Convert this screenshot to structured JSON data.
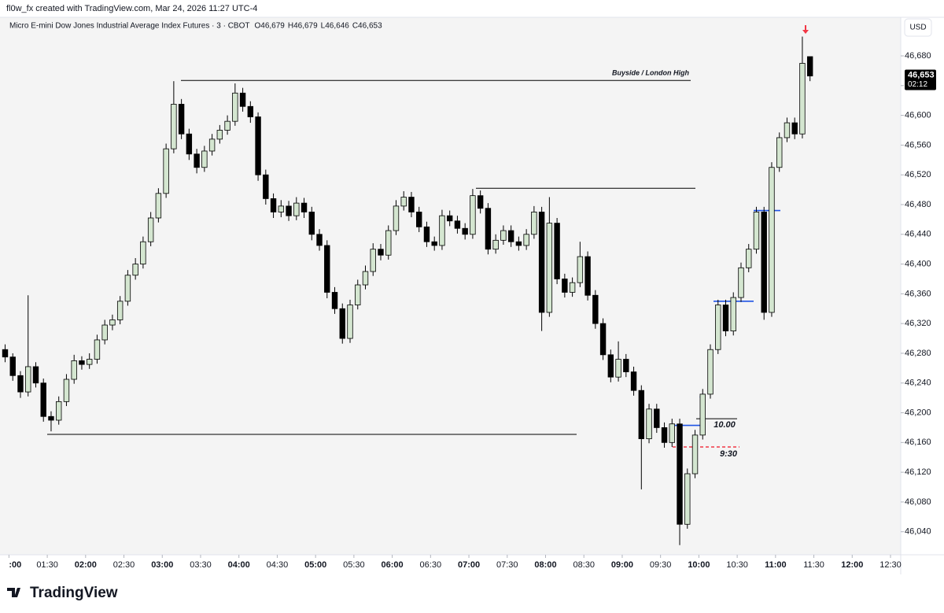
{
  "header": {
    "caption": "fl0w_fx created with TradingView.com, Mar 24, 2026 11:27 UTC-4",
    "currency": "USD",
    "brand": "TradingView"
  },
  "chart_data": {
    "type": "candlestick",
    "title": "Micro E-mini Dow Jones Industrial Average Index Futures · 3 · CBOT",
    "ohlc_text": [
      "O46,679",
      "H46,679",
      "L46,646",
      "C46,653"
    ],
    "x": [
      "00:57",
      "01:03",
      "01:09",
      "01:15",
      "01:21",
      "01:27",
      "01:33",
      "01:39",
      "01:45",
      "01:51",
      "01:57",
      "02:03",
      "02:09",
      "02:15",
      "02:21",
      "02:27",
      "02:33",
      "02:39",
      "02:45",
      "02:51",
      "02:57",
      "03:03",
      "03:09",
      "03:15",
      "03:21",
      "03:27",
      "03:33",
      "03:39",
      "03:45",
      "03:51",
      "03:57",
      "04:03",
      "04:09",
      "04:15",
      "04:21",
      "04:27",
      "04:33",
      "04:39",
      "04:45",
      "04:51",
      "04:57",
      "05:03",
      "05:09",
      "05:15",
      "05:21",
      "05:27",
      "05:33",
      "05:39",
      "05:45",
      "05:51",
      "05:57",
      "06:03",
      "06:09",
      "06:15",
      "06:21",
      "06:27",
      "06:33",
      "06:39",
      "06:45",
      "06:51",
      "06:57",
      "07:03",
      "07:09",
      "07:15",
      "07:21",
      "07:27",
      "07:33",
      "07:39",
      "07:45",
      "07:51",
      "07:57",
      "08:03",
      "08:09",
      "08:15",
      "08:21",
      "08:27",
      "08:33",
      "08:39",
      "08:45",
      "08:51",
      "08:57",
      "09:03",
      "09:09",
      "09:15",
      "09:21",
      "09:27",
      "09:33",
      "09:39",
      "09:45",
      "09:51",
      "09:57",
      "10:03",
      "10:09",
      "10:15",
      "10:21",
      "10:27",
      "10:33",
      "10:39",
      "10:45",
      "10:51",
      "10:57",
      "11:03",
      "11:09",
      "11:15",
      "11:21",
      "11:27"
    ],
    "open": [
      46285,
      46275,
      46250,
      46228,
      46262,
      46240,
      46195,
      46190,
      46215,
      46245,
      46270,
      46265,
      46272,
      46298,
      46318,
      46325,
      46350,
      46385,
      46400,
      46430,
      46462,
      46495,
      46555,
      46615,
      46575,
      46548,
      46530,
      46552,
      46568,
      46580,
      46592,
      46630,
      46612,
      46598,
      46520,
      46488,
      46470,
      46478,
      46465,
      46482,
      46470,
      46440,
      46425,
      46362,
      46340,
      46300,
      46345,
      46372,
      46390,
      46420,
      46412,
      46445,
      46478,
      46490,
      46470,
      46450,
      46430,
      46425,
      46465,
      46458,
      46448,
      46440,
      46492,
      46475,
      46420,
      46432,
      46445,
      46430,
      46425,
      46440,
      46470,
      46335,
      46455,
      46380,
      46362,
      46375,
      46410,
      46358,
      46320,
      46278,
      46248,
      46272,
      46255,
      46230,
      46165,
      46205,
      46180,
      46160,
      46185,
      46050,
      46118,
      46170,
      46225,
      46285,
      46345,
      46310,
      46355,
      46395,
      46420,
      46470,
      46335,
      46530,
      46570,
      46590,
      46575,
      46679
    ],
    "high": [
      46292,
      46280,
      46256,
      46358,
      46268,
      46246,
      46202,
      46222,
      46252,
      46278,
      46276,
      46280,
      46305,
      46325,
      46332,
      46357,
      46392,
      46408,
      46437,
      46470,
      46502,
      46562,
      46646,
      46622,
      46582,
      46555,
      46559,
      46575,
      46587,
      46600,
      46643,
      46637,
      46619,
      46604,
      46527,
      46495,
      46486,
      46485,
      46490,
      46489,
      46477,
      46447,
      46432,
      46369,
      46347,
      46352,
      46379,
      46398,
      46428,
      46427,
      46452,
      46486,
      46498,
      46497,
      46477,
      46457,
      46437,
      46473,
      46472,
      46465,
      46455,
      46501,
      46499,
      46482,
      46440,
      46452,
      46452,
      46437,
      46447,
      46478,
      46477,
      46490,
      46462,
      46387,
      46382,
      46430,
      46417,
      46365,
      46327,
      46285,
      46296,
      46279,
      46262,
      46237,
      46212,
      46212,
      46187,
      46192,
      46192,
      46125,
      46177,
      46232,
      46292,
      46352,
      46352,
      46362,
      46402,
      46427,
      46477,
      46477,
      46537,
      46577,
      46597,
      46597,
      46706,
      46679
    ],
    "low": [
      46268,
      46243,
      46220,
      46222,
      46234,
      46188,
      46175,
      46184,
      46209,
      46239,
      46258,
      46259,
      46266,
      46292,
      46311,
      46319,
      46344,
      46379,
      46394,
      46424,
      46456,
      46489,
      46549,
      46568,
      46540,
      46522,
      46524,
      46546,
      46562,
      46574,
      46586,
      46605,
      46590,
      46512,
      46480,
      46462,
      46463,
      46458,
      46459,
      46462,
      46432,
      46418,
      46354,
      46333,
      46293,
      46294,
      46339,
      46366,
      46384,
      46405,
      46406,
      46439,
      46472,
      46463,
      46443,
      46423,
      46418,
      46419,
      46451,
      46441,
      46433,
      46434,
      46468,
      46413,
      46414,
      46426,
      46423,
      46418,
      46419,
      46434,
      46310,
      46329,
      46373,
      46355,
      46356,
      46369,
      46351,
      46313,
      46271,
      46241,
      46242,
      46248,
      46223,
      46097,
      46159,
      46173,
      46153,
      46154,
      46022,
      46044,
      46112,
      46164,
      46219,
      46279,
      46303,
      46304,
      46349,
      46389,
      46414,
      46325,
      46329,
      46524,
      46564,
      46568,
      46569,
      46646
    ],
    "close": [
      46275,
      46250,
      46228,
      46262,
      46240,
      46195,
      46190,
      46215,
      46245,
      46270,
      46265,
      46272,
      46298,
      46318,
      46325,
      46350,
      46385,
      46400,
      46430,
      46462,
      46495,
      46555,
      46615,
      46575,
      46548,
      46530,
      46552,
      46568,
      46580,
      46592,
      46630,
      46612,
      46598,
      46520,
      46488,
      46470,
      46478,
      46465,
      46482,
      46470,
      46440,
      46425,
      46362,
      46340,
      46300,
      46345,
      46372,
      46390,
      46420,
      46412,
      46445,
      46478,
      46490,
      46470,
      46450,
      46430,
      46425,
      46465,
      46458,
      46448,
      46440,
      46492,
      46475,
      46420,
      46432,
      46445,
      46430,
      46425,
      46440,
      46470,
      46335,
      46455,
      46380,
      46362,
      46375,
      46410,
      46358,
      46320,
      46278,
      46248,
      46272,
      46255,
      46230,
      46165,
      46205,
      46180,
      46160,
      46185,
      46050,
      46118,
      46170,
      46225,
      46285,
      46345,
      46310,
      46355,
      46395,
      46420,
      46470,
      46335,
      46530,
      46570,
      46590,
      46575,
      46670,
      46653
    ],
    "up_color": "#d4e6d0",
    "down_color": "#000000",
    "xlim": [
      "00:53",
      "12:38"
    ],
    "xticks": [
      {
        "value": "01:00",
        "label": ":00"
      },
      "01:30",
      "02:00",
      "02:30",
      "03:00",
      "03:30",
      "04:00",
      "04:30",
      "05:00",
      "05:30",
      "06:00",
      "06:30",
      "07:00",
      "07:30",
      "08:00",
      "08:30",
      "09:00",
      "09:30",
      "10:00",
      "10:30",
      "11:00",
      "11:30",
      "12:00",
      "12:30"
    ],
    "ylim": [
      46009,
      46734
    ],
    "yticks": [
      {
        "value": 46040,
        "label": "46,040"
      },
      {
        "value": 46080,
        "label": "46,080"
      },
      {
        "value": 46120,
        "label": "46,120"
      },
      {
        "value": 46160,
        "label": "46,160"
      },
      {
        "value": 46200,
        "label": "46,200"
      },
      {
        "value": 46240,
        "label": "46,240"
      },
      {
        "value": 46280,
        "label": "46,280"
      },
      {
        "value": 46320,
        "label": "46,320"
      },
      {
        "value": 46360,
        "label": "46,360"
      },
      {
        "value": 46400,
        "label": "46,400"
      },
      {
        "value": 46440,
        "label": "46,440"
      },
      {
        "value": 46480,
        "label": "46,480"
      },
      {
        "value": 46520,
        "label": "46,520"
      },
      {
        "value": 46560,
        "label": "46,560"
      },
      {
        "value": 46600,
        "label": "46,600"
      },
      {
        "value": 46640,
        "label": "46,640"
      },
      {
        "value": 46680,
        "label": "46,680"
      }
    ],
    "last_price": {
      "value": 46653,
      "label": "46,653"
    },
    "countdown": "02:12",
    "levels": [
      {
        "value": 46647,
        "label": "Buyside / London High",
        "color": "#000000"
      },
      {
        "value": 46502,
        "color": "#000000"
      },
      {
        "value": 46171,
        "color": "#000000"
      },
      {
        "value": 46192,
        "label": "10.00",
        "color": "#000000"
      },
      {
        "value": 46183,
        "color": "#1e53e5"
      },
      {
        "value": 46154,
        "label": "9:30",
        "color": "#f23645",
        "dashed": true
      },
      {
        "value": 46472,
        "color": "#1e53e5"
      },
      {
        "value": 46350,
        "color": "#1e53e5"
      }
    ]
  }
}
